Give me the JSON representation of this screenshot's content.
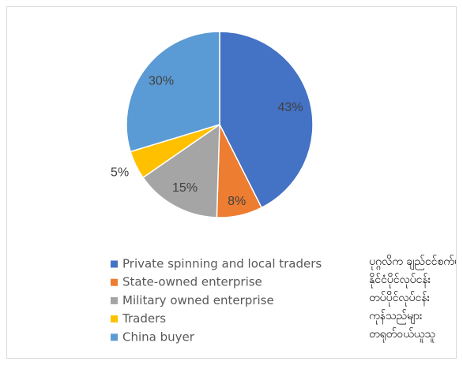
{
  "chart_data": {
    "type": "pie",
    "categories": [
      "Private spinning and local traders",
      "State-owned enterprise",
      "Military owned enterprise",
      "Traders",
      "China buyer"
    ],
    "values": [
      43,
      8,
      15,
      5,
      30
    ],
    "value_labels": [
      "43%",
      "8%",
      "15%",
      "5%",
      "30%"
    ],
    "colors": [
      "#4472c4",
      "#ed7d31",
      "#a5a5a5",
      "#ffc000",
      "#5b9bd5"
    ],
    "legend": "bottom",
    "annotations": [
      "ပုဂ္ဂလိက ချည်ငင်စက်များနှင့် ပြည်တွင်းကုန်သည်များ",
      "နိုင်ငံပိုင်လုပ်ငန်း",
      "တပ်ပိုင်လုပ်ငန်း",
      "ကုန်သည်များ",
      "တရုတ်ဝယ်ယူသူ"
    ]
  }
}
